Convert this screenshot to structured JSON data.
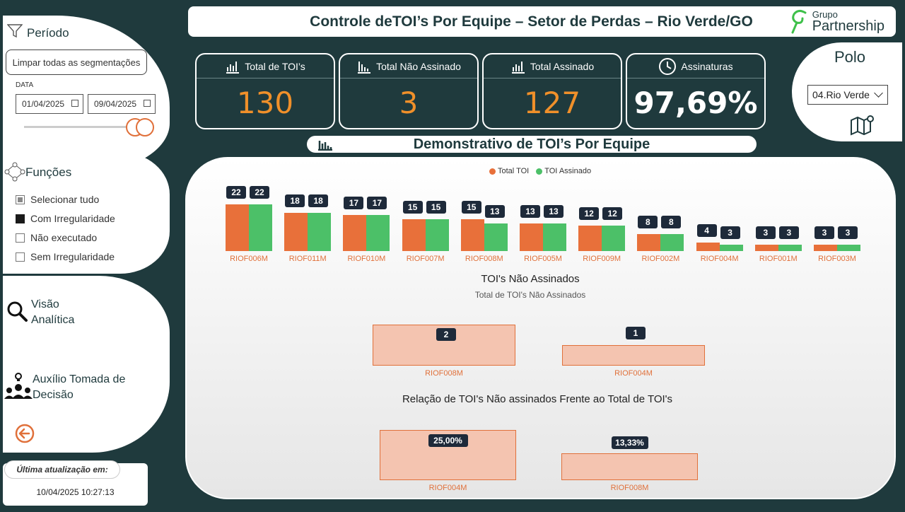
{
  "header": {
    "title": "Controle deTOI’s Por Equipe – Setor de Perdas – Rio Verde/GO",
    "logo_small": "Grupo",
    "logo_big": "Partnership"
  },
  "sidebar": {
    "periodo_label": "Período",
    "clear_label": "Limpar todas as segmentações",
    "data_label": "DATA",
    "date_start": "01/04/2025",
    "date_end": "09/04/2025",
    "funcoes_label": "Funções",
    "funcoes_items": [
      {
        "label": "Selecionar tudo",
        "state": "partial"
      },
      {
        "label": "Com Irregularidade",
        "state": "checked"
      },
      {
        "label": "Não executado",
        "state": "unchecked"
      },
      {
        "label": "Sem Irregularidade",
        "state": "unchecked"
      }
    ],
    "nav_visao_1": "Visão",
    "nav_visao_2": "Analítica",
    "nav_auxilio_1": "Auxílio Tomada de",
    "nav_auxilio_2": "Decisão",
    "update_label": "Última atualização em:",
    "update_value": "10/04/2025 10:27:13"
  },
  "kpis": [
    {
      "label": "Total de TOI’s",
      "value": "130",
      "icon": "bar-chart-icon"
    },
    {
      "label": "Total Não Assinado",
      "value": "3",
      "icon": "bar-chart-down-icon"
    },
    {
      "label": "Total Assinado",
      "value": "127",
      "icon": "bar-chart-icon"
    },
    {
      "label": "Assinaturas",
      "value": "97,69%",
      "icon": "clock-icon"
    }
  ],
  "polo": {
    "title": "Polo",
    "selected": "04.Rio Verde",
    "icon": "map-icon"
  },
  "section": {
    "title": "Demonstrativo de TOI’s Por Equipe",
    "icon": "bar-chart-icon"
  },
  "colors": {
    "total": "#e8703a",
    "assinado": "#4cc068",
    "bg": "#1f3a3d"
  },
  "chart_data": [
    {
      "type": "bar",
      "legend": [
        "Total TOI",
        "TOI Assinado"
      ],
      "categories": [
        "RIOF006M",
        "RIOF011M",
        "RIOF010M",
        "RIOF007M",
        "RIOF008M",
        "RIOF005M",
        "RIOF009M",
        "RIOF002M",
        "RIOF004M",
        "RIOF001M",
        "RIOF003M"
      ],
      "series": [
        {
          "name": "Total TOI",
          "values": [
            22,
            18,
            17,
            15,
            15,
            13,
            12,
            8,
            4,
            3,
            3
          ]
        },
        {
          "name": "TOI Assinado",
          "values": [
            22,
            18,
            17,
            15,
            13,
            13,
            12,
            8,
            3,
            3,
            3
          ]
        }
      ]
    },
    {
      "type": "bar",
      "title": "TOI's Não Assinados",
      "subtitle": "Total de TOI's Não Assinados",
      "categories": [
        "RIOF008M",
        "RIOF004M"
      ],
      "values": [
        2,
        1
      ],
      "labels": [
        "2",
        "1"
      ]
    },
    {
      "type": "bar",
      "title": "Relação de TOI's Não assinados Frente ao Total de TOI's",
      "categories": [
        "RIOF004M",
        "RIOF008M"
      ],
      "values": [
        25.0,
        13.33
      ],
      "labels": [
        "25,00%",
        "13,33%"
      ]
    }
  ]
}
